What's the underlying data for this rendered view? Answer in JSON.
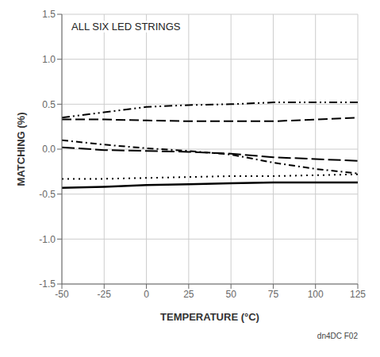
{
  "chart_data": {
    "type": "line",
    "title": "ALL SIX LED STRINGS",
    "xlabel": "TEMPERATURE (°C)",
    "ylabel": "MATCHING (%)",
    "annotations": [
      "dn4DC F02"
    ],
    "x": [
      -50,
      -25,
      0,
      25,
      50,
      75,
      100,
      125
    ],
    "xlim": [
      -50,
      125
    ],
    "ylim": [
      -1.5,
      1.5
    ],
    "xticks": [
      -50,
      -25,
      0,
      25,
      50,
      75,
      100,
      125
    ],
    "yticks": [
      -1.5,
      {
        "value": -1.0,
        "label": "-1.0"
      },
      -0.5,
      {
        "value": 0.0,
        "label": "0.0"
      },
      0.5,
      {
        "value": 1.0,
        "label": "1.0"
      },
      1.5
    ],
    "grid": true,
    "series": [
      {
        "color": "#000000",
        "line_style": "dashdotdot",
        "values": [
          0.35,
          0.41,
          0.47,
          0.49,
          0.5,
          0.52,
          0.52,
          0.52
        ]
      },
      {
        "color": "#000000",
        "line_style": "dashed",
        "values": [
          0.33,
          0.33,
          0.32,
          0.31,
          0.31,
          0.31,
          0.33,
          0.35
        ]
      },
      {
        "color": "#000000",
        "line_style": "dashdot",
        "values": [
          0.1,
          0.05,
          0.01,
          -0.02,
          -0.06,
          -0.15,
          -0.22,
          -0.27
        ]
      },
      {
        "color": "#000000",
        "line_style": "longdash",
        "values": [
          0.02,
          -0.01,
          -0.02,
          -0.03,
          -0.05,
          -0.09,
          -0.11,
          -0.13
        ]
      },
      {
        "color": "#000000",
        "line_style": "dotted",
        "values": [
          -0.33,
          -0.33,
          -0.32,
          -0.31,
          -0.3,
          -0.3,
          -0.29,
          -0.28
        ]
      },
      {
        "color": "#000000",
        "line_style": "solid",
        "values": [
          -0.43,
          -0.42,
          -0.4,
          -0.39,
          -0.38,
          -0.37,
          -0.37,
          -0.37
        ]
      }
    ]
  }
}
